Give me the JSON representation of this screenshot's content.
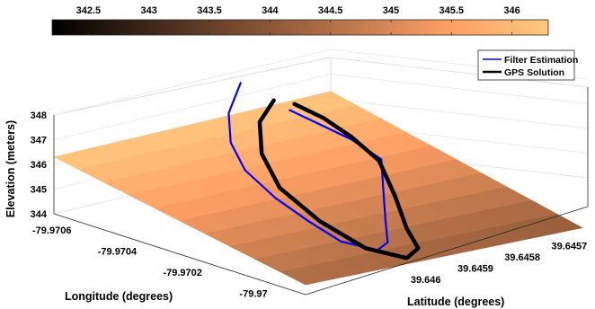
{
  "chart_data": {
    "type": "surface3d",
    "title": "",
    "colorbar": {
      "colormap": "copper",
      "min": 342.2,
      "max": 346.3,
      "ticks": [
        "342.5",
        "343",
        "343.5",
        "344",
        "344.5",
        "345",
        "345.5",
        "346"
      ]
    },
    "axes": {
      "x": {
        "label": "Longitude (degrees)",
        "ticks": [
          "-79.9706",
          "-79.9704",
          "-79.9702",
          "-79.97"
        ]
      },
      "y": {
        "label": "Latitude (degrees)",
        "ticks": [
          "39.6457",
          "39.6458",
          "39.6459",
          "39.646"
        ]
      },
      "z": {
        "label": "Elevation (meters)",
        "ticks": [
          "344",
          "345",
          "346",
          "347",
          "348"
        ],
        "zlim": [
          344,
          348
        ]
      }
    },
    "grid": "on",
    "legend": {
      "placement": "top-right",
      "entries": [
        "Filter Estimation",
        "GPS Solution"
      ]
    },
    "series": [
      {
        "name": "Filter Estimation",
        "color": "#0000ff",
        "points": [
          [
            -79.97063,
            39.64585,
            347.8
          ],
          [
            -79.97048,
            39.64598,
            347.8
          ],
          [
            -79.97033,
            39.64608,
            347.7
          ],
          [
            -79.9702,
            39.64614,
            347.4
          ],
          [
            -79.97005,
            39.64618,
            347.1
          ],
          [
            -79.96992,
            39.6462,
            346.8
          ],
          [
            -79.96982,
            39.6462,
            346.4
          ],
          [
            -79.96978,
            39.64615,
            346.0
          ],
          [
            -79.96985,
            39.64608,
            345.7
          ],
          [
            -79.97,
            39.64598,
            345.5
          ],
          [
            -79.97015,
            39.64588,
            345.6
          ],
          [
            -79.9703,
            39.64578,
            345.8
          ],
          [
            -79.97042,
            39.64576,
            346.0
          ],
          [
            -79.9705,
            39.64577,
            346.3
          ],
          [
            -79.97058,
            39.64578,
            346.6
          ]
        ]
      },
      {
        "name": "GPS Solution",
        "color": "#000000",
        "points": [
          [
            -79.9706,
            39.6458,
            347.0
          ],
          [
            -79.9705,
            39.6459,
            347.0
          ],
          [
            -79.97035,
            39.646,
            346.8
          ],
          [
            -79.97018,
            39.64608,
            346.5
          ],
          [
            -79.97,
            39.64612,
            346.1
          ],
          [
            -79.96986,
            39.64612,
            345.6
          ],
          [
            -79.96982,
            39.64606,
            345.1
          ],
          [
            -79.9699,
            39.64598,
            344.8
          ],
          [
            -79.97005,
            39.6459,
            344.6
          ],
          [
            -79.9702,
            39.64582,
            344.9
          ],
          [
            -79.97035,
            39.64575,
            345.4
          ],
          [
            -79.97045,
            39.64574,
            345.9
          ],
          [
            -79.97052,
            39.64575,
            346.4
          ],
          [
            -79.97058,
            39.64577,
            346.8
          ]
        ]
      }
    ]
  }
}
